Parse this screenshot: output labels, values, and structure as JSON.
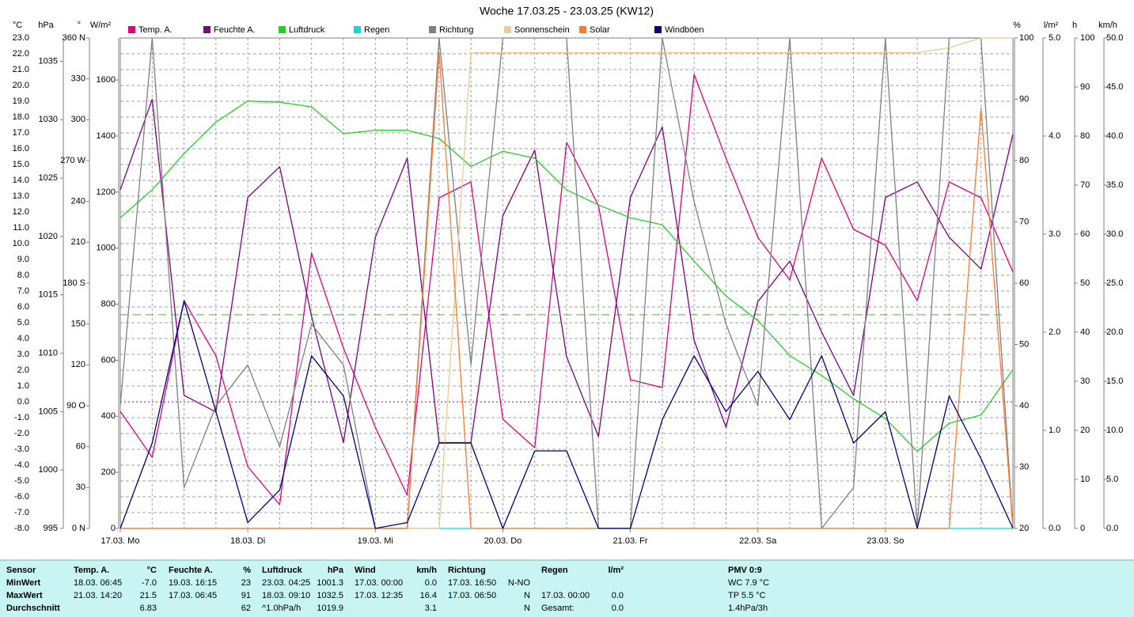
{
  "chart_data": {
    "type": "line",
    "title": "Woche 17.03.25 - 23.03.25 (KW12)",
    "xlim": [
      0,
      7
    ],
    "xticks": [
      {
        "value": 0,
        "label": "17.03. Mo"
      },
      {
        "value": 1,
        "label": "18.03. Di"
      },
      {
        "value": 2,
        "label": "19.03. Mi"
      },
      {
        "value": 3,
        "label": "20.03. Do"
      },
      {
        "value": 4,
        "label": "21.03. Fr"
      },
      {
        "value": 5,
        "label": "22.03. Sa"
      },
      {
        "value": 6,
        "label": "23.03. So"
      }
    ],
    "x": [
      0,
      0.25,
      0.5,
      0.75,
      1,
      1.25,
      1.5,
      1.75,
      2,
      2.25,
      2.5,
      2.75,
      3,
      3.25,
      3.5,
      3.75,
      4,
      4.25,
      4.5,
      4.75,
      5,
      5.25,
      5.5,
      5.75,
      6,
      6.25,
      6.5,
      6.75,
      7
    ],
    "grid": true,
    "pressure_reference": 1013.3,
    "axes": [
      {
        "label": "°C",
        "color": "#d0006a",
        "ylim": [
          -8,
          23
        ],
        "yticks": [
          {
            "value": -8,
            "label": "-8.0"
          },
          {
            "value": -7,
            "label": "-7.0"
          },
          {
            "value": -6,
            "label": "-6.0"
          },
          {
            "value": -5,
            "label": "-5.0"
          },
          {
            "value": -4,
            "label": "-4.0"
          },
          {
            "value": -3,
            "label": "-3.0"
          },
          {
            "value": -2,
            "label": "-2.0"
          },
          {
            "value": -1,
            "label": "-1.0"
          },
          {
            "value": 0,
            "label": "0.0"
          },
          {
            "value": 1,
            "label": "1.0"
          },
          {
            "value": 2,
            "label": "2.0"
          },
          {
            "value": 3,
            "label": "3.0"
          },
          {
            "value": 4,
            "label": "4.0"
          },
          {
            "value": 5,
            "label": "5.0"
          },
          {
            "value": 6,
            "label": "6.0"
          },
          {
            "value": 7,
            "label": "7.0"
          },
          {
            "value": 8,
            "label": "8.0"
          },
          {
            "value": 9,
            "label": "9.0"
          },
          {
            "value": 10,
            "label": "10.0"
          },
          {
            "value": 11,
            "label": "11.0"
          },
          {
            "value": 12,
            "label": "12.0"
          },
          {
            "value": 13,
            "label": "13.0"
          },
          {
            "value": 14,
            "label": "14.0"
          },
          {
            "value": 15,
            "label": "15.0"
          },
          {
            "value": 16,
            "label": "16.0"
          },
          {
            "value": 17,
            "label": "17.0"
          },
          {
            "value": 18,
            "label": "18.0"
          },
          {
            "value": 19,
            "label": "19.0"
          },
          {
            "value": 20,
            "label": "20.0"
          },
          {
            "value": 21,
            "label": "21.0"
          },
          {
            "value": 22,
            "label": "22.0"
          },
          {
            "value": 23,
            "label": "23.0"
          }
        ]
      },
      {
        "label": "hPa",
        "color": "#00a000",
        "ylim": [
          995,
          1037
        ],
        "yticks": [
          995,
          1000,
          1005,
          1010,
          1015,
          1020,
          1025,
          1030,
          1035
        ]
      },
      {
        "label": "°",
        "color": "#606060",
        "ylim": [
          0,
          360
        ],
        "yticks": [
          {
            "value": 0,
            "label": "0 N"
          },
          30,
          60,
          {
            "value": 90,
            "label": "90 O"
          },
          120,
          150,
          {
            "value": 180,
            "label": "180 S"
          },
          210,
          240,
          {
            "value": 270,
            "label": "270 W"
          },
          300,
          330,
          {
            "value": 360,
            "label": "360 N"
          }
        ]
      },
      {
        "label": "W/m²",
        "color": "#e06020",
        "ylim": [
          0,
          1750
        ],
        "yticks": [
          0,
          200,
          400,
          600,
          800,
          1000,
          1200,
          1400,
          1600
        ]
      },
      {
        "label": "%",
        "color": "#800080",
        "ylim": [
          20,
          100
        ],
        "yticks": [
          20,
          30,
          40,
          50,
          60,
          70,
          80,
          90,
          100
        ]
      },
      {
        "label": "l/m²",
        "color": "#00c8c8",
        "ylim": [
          0,
          5
        ],
        "yticks": [
          {
            "value": 0,
            "label": "0.0"
          },
          {
            "value": 1,
            "label": "1.0"
          },
          {
            "value": 2,
            "label": "2.0"
          },
          {
            "value": 3,
            "label": "3.0"
          },
          {
            "value": 4,
            "label": "4.0"
          },
          {
            "value": 5,
            "label": "5.0"
          }
        ]
      },
      {
        "label": "h",
        "color": "#f0b878",
        "ylim": [
          0,
          100
        ],
        "yticks": [
          0,
          10,
          20,
          30,
          40,
          50,
          60,
          70,
          80,
          90,
          100
        ]
      },
      {
        "label": "km/h",
        "color": "#000080",
        "ylim": [
          0,
          50
        ],
        "yticks": [
          {
            "value": 0,
            "label": "0.0"
          },
          {
            "value": 5,
            "label": "5.0"
          },
          {
            "value": 10,
            "label": "10.0"
          },
          {
            "value": 15,
            "label": "15.0"
          },
          {
            "value": 20,
            "label": "20.0"
          },
          {
            "value": 25,
            "label": "25.0"
          },
          {
            "value": 30,
            "label": "30.0"
          },
          {
            "value": 35,
            "label": "35.0"
          },
          {
            "value": 40,
            "label": "40.0"
          },
          {
            "value": 45,
            "label": "45.0"
          },
          {
            "value": 50,
            "label": "50.0"
          }
        ]
      }
    ],
    "series": [
      {
        "name": "Temp. A.",
        "color": "#e0007f",
        "axis": 0,
        "values": [
          -0.6,
          -3.5,
          6.4,
          2.9,
          -4.1,
          -6.5,
          9.4,
          3.4,
          -1.6,
          -5.9,
          12.9,
          13.9,
          -1.1,
          -2.9,
          16.4,
          12.4,
          1.4,
          0.9,
          20.7,
          15.4,
          10.4,
          7.7,
          15.4,
          10.9,
          9.9,
          6.4,
          13.9,
          12.9,
          8.2
        ]
      },
      {
        "name": "Feuchte A.",
        "color": "#800080",
        "axis": 4,
        "values": [
          75.2,
          90,
          41.7,
          39,
          74,
          79,
          54.6,
          34,
          67.5,
          80.4,
          34,
          34,
          71,
          81.7,
          48,
          35,
          74,
          85.5,
          50.7,
          36.5,
          57,
          63.6,
          52,
          41.7,
          74,
          76.5,
          67.5,
          62.3,
          84.3
        ]
      },
      {
        "name": "Luftdruck",
        "color": "#22d022",
        "axis": 1,
        "values": [
          1021.6,
          1024,
          1027.1,
          1029.8,
          1031.6,
          1031.5,
          1031.1,
          1028.8,
          1029.1,
          1029.1,
          1028.4,
          1026,
          1027.3,
          1026.7,
          1024,
          1022.7,
          1021.6,
          1021,
          1017.9,
          1014.9,
          1012.8,
          1009.8,
          1008.1,
          1006.1,
          1004.4,
          1001.6,
          1004,
          1004.7,
          1008.6
        ]
      },
      {
        "name": "Regen",
        "color": "#00e0e0",
        "axis": 5,
        "values": [
          0,
          0,
          0,
          0,
          0,
          0,
          0,
          0,
          0,
          0,
          0,
          0,
          0,
          0,
          0,
          0,
          0,
          0,
          0,
          0,
          0,
          0,
          0,
          0,
          0,
          0,
          0,
          0,
          0
        ]
      },
      {
        "name": "Richtung",
        "color": "#808080",
        "axis": 2,
        "values": [
          90,
          360,
          30,
          90,
          120,
          60,
          150,
          120,
          0,
          0,
          360,
          120,
          360,
          360,
          360,
          0,
          0,
          360,
          240,
          150,
          90,
          360,
          0,
          30,
          360,
          0,
          360,
          360,
          0
        ]
      },
      {
        "name": "Sonnenschein",
        "color": "#f0c890",
        "axis": 6,
        "values": [
          0,
          0,
          0,
          0,
          0,
          0,
          0,
          0,
          0,
          0,
          0,
          97,
          97,
          97,
          97,
          97,
          97,
          97,
          97,
          97,
          97,
          97,
          97,
          97,
          97,
          97,
          98,
          100,
          100
        ]
      },
      {
        "name": "Solar",
        "color": "#ff7830",
        "axis": 3,
        "values": [
          0,
          0,
          0,
          0,
          0,
          0,
          0,
          0,
          0,
          0,
          1700,
          0,
          0,
          0,
          0,
          0,
          0,
          0,
          0,
          0,
          0,
          0,
          0,
          0,
          0,
          0,
          0,
          1500,
          0
        ]
      },
      {
        "name": "Windböen",
        "color": "#000080",
        "axis": 7,
        "values": [
          0,
          8.7,
          23.2,
          11.9,
          0.6,
          3.9,
          17.6,
          13.5,
          0,
          0.6,
          8.7,
          8.7,
          0,
          7.9,
          7.9,
          0,
          0,
          11.1,
          17.6,
          11.9,
          16,
          11.1,
          17.6,
          8.7,
          11.9,
          0,
          13.5,
          7.1,
          0
        ]
      }
    ]
  },
  "table": {
    "header": [
      "Sensor",
      "Temp. A.",
      "°C",
      "Feuchte A.",
      "%",
      "Luftdruck",
      "hPa",
      "Wind",
      "km/h",
      "Richtung",
      null,
      "Regen",
      "l/m²",
      "PMV 0:9"
    ],
    "rows": [
      [
        "MinWert",
        "18.03.  06:45",
        "-7.0",
        "19.03.  16:15",
        "23",
        "23.03.  04:25",
        "1001.3",
        "17.03.  00:00",
        "0.0",
        "17.03.  16:50",
        "N-NO",
        null,
        null,
        "WC 7.9 °C"
      ],
      [
        "MaxWert",
        "21.03.  14:20",
        "21.5",
        "17.03.  06:45",
        "91",
        "18.03.  09:10",
        "1032.5",
        "17.03.  12:35",
        "16.4",
        "17.03.  06:50",
        "N",
        "17.03.  00:00",
        "0.0",
        "TP 5.5 °C"
      ],
      [
        "Durchschnitt",
        null,
        "6.83",
        null,
        "62",
        "^1.0hPa/h",
        "1019.9",
        null,
        "3.1",
        null,
        "N",
        "Gesamt:",
        "0.0",
        "1.4hPa/3h"
      ]
    ]
  }
}
